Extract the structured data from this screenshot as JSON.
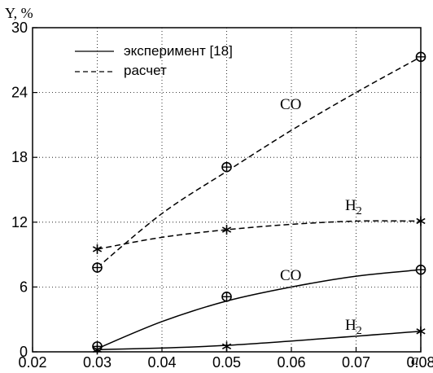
{
  "chart_data": {
    "type": "line",
    "ylabel": "Y, %",
    "xlabel": "a",
    "xlim": [
      0.02,
      0.08
    ],
    "ylim": [
      0,
      30
    ],
    "xticks": [
      "0.02",
      "0.03",
      "0.04",
      "0.05",
      "0.06",
      "0.07",
      "0.08"
    ],
    "xtick_values": [
      0.02,
      0.03,
      0.04,
      0.05,
      0.06,
      0.07,
      0.08
    ],
    "yticks": [
      "0",
      "6",
      "12",
      "18",
      "24",
      "30"
    ],
    "ytick_values": [
      0,
      6,
      12,
      18,
      24,
      30
    ],
    "grid": true,
    "legend": {
      "placement": "top-left",
      "entries": [
        {
          "label": "эксперимент [18]",
          "style": "solid"
        },
        {
          "label": "расчет",
          "style": "dashed"
        }
      ]
    },
    "series": [
      {
        "style": "solid",
        "marker": "circle-plus",
        "curve_label": {
          "main": "CO",
          "sub": ""
        },
        "x": [
          0.03,
          0.05,
          0.08
        ],
        "y": [
          0.5,
          5.1,
          7.6
        ],
        "curve": [
          [
            0.03,
            0.3
          ],
          [
            0.04,
            2.8
          ],
          [
            0.05,
            4.7
          ],
          [
            0.06,
            6.0
          ],
          [
            0.07,
            7.0
          ],
          [
            0.08,
            7.6
          ]
        ]
      },
      {
        "style": "solid",
        "marker": "asterisk",
        "curve_label": {
          "main": "H",
          "sub": "2"
        },
        "x": [
          0.03,
          0.05,
          0.08
        ],
        "y": [
          0.2,
          0.5,
          1.9
        ],
        "curve": [
          [
            0.03,
            0.2
          ],
          [
            0.05,
            0.6
          ],
          [
            0.08,
            1.9
          ]
        ]
      },
      {
        "style": "dashed",
        "marker": "circle-plus",
        "curve_label": {
          "main": "CO",
          "sub": ""
        },
        "x": [
          0.03,
          0.05,
          0.08
        ],
        "y": [
          7.8,
          17.1,
          27.3
        ],
        "curve": [
          [
            0.03,
            7.8
          ],
          [
            0.04,
            12.8
          ],
          [
            0.05,
            16.7
          ],
          [
            0.06,
            20.5
          ],
          [
            0.07,
            24.0
          ],
          [
            0.08,
            27.3
          ]
        ]
      },
      {
        "style": "dashed",
        "marker": "asterisk",
        "curve_label": {
          "main": "H",
          "sub": "2"
        },
        "x": [
          0.03,
          0.05,
          0.08
        ],
        "y": [
          9.5,
          11.3,
          12.1
        ],
        "curve": [
          [
            0.03,
            9.5
          ],
          [
            0.04,
            10.6
          ],
          [
            0.05,
            11.3
          ],
          [
            0.06,
            11.8
          ],
          [
            0.07,
            12.1
          ],
          [
            0.08,
            12.1
          ]
        ]
      }
    ]
  }
}
